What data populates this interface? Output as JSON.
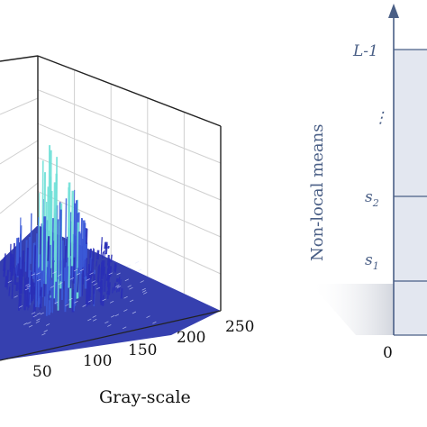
{
  "chart_data": [
    {
      "type": "surface3d",
      "xlabel": "Gray-scale",
      "x_ticks": [
        "50",
        "100",
        "150",
        "200",
        "250"
      ],
      "grid": true,
      "colors": {
        "peak": "#6fe0d8",
        "mid": "#3b5ad8",
        "base": "#2a2fb8",
        "floor": "#1f2a9e"
      }
    },
    {
      "type": "diagram",
      "ylabel": "Non-local means",
      "levels": [
        {
          "label": "L-1",
          "value": "L-1"
        },
        {
          "label": "⋮",
          "value": ""
        },
        {
          "label": "s",
          "sub": "2",
          "value": "s2"
        },
        {
          "label": "s",
          "sub": "1",
          "value": "s1"
        }
      ],
      "origin_label": "0",
      "colors": {
        "region": "#e3e7f0",
        "line": "#4a5f86",
        "arrow": "#4a5f86"
      }
    }
  ]
}
